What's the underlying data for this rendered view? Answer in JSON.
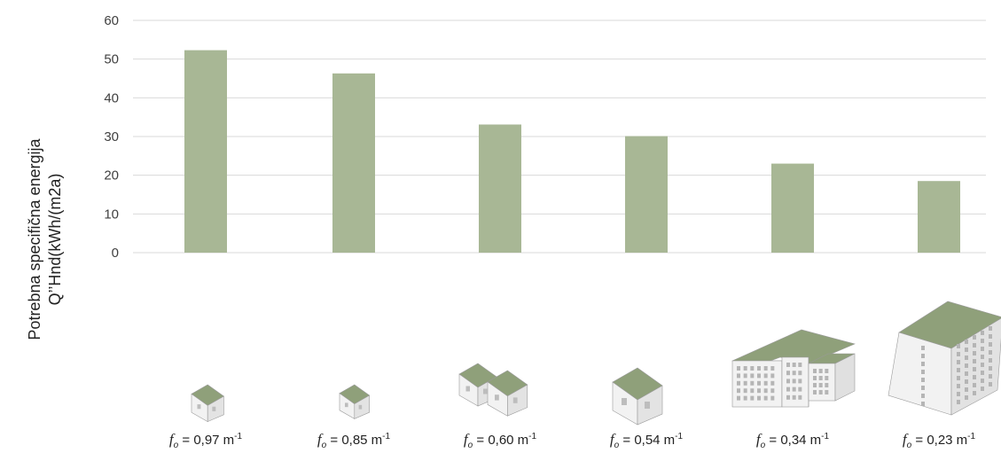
{
  "chart_data": {
    "type": "bar",
    "categories": [
      "0,97",
      "0,85",
      "0,60",
      "0,54",
      "0,34",
      "0,23"
    ],
    "values": [
      52.3,
      46.3,
      33.1,
      30.1,
      23.0,
      18.5
    ],
    "title": "",
    "ylabel_line1": "Potrebna specifična energija",
    "ylabel_line2": "Q’’Hnd(kWh/(m2a)",
    "ylim": [
      0,
      60
    ],
    "yticks": [
      0,
      10,
      20,
      30,
      40,
      50,
      60
    ],
    "grid": true,
    "bar_color": "#a8b795",
    "factor_symbol": "f",
    "factor_subscript": "o",
    "factor_unit": "m",
    "factor_unit_exp": "-1",
    "building_icons": [
      "small-house-icon",
      "small-house-icon",
      "double-house-icon",
      "house-icon",
      "l-shaped-apartment-block-icon",
      "apartment-tower-icon"
    ],
    "roof_color": "#8fa07a",
    "wall_color": "#f2f2f2"
  }
}
